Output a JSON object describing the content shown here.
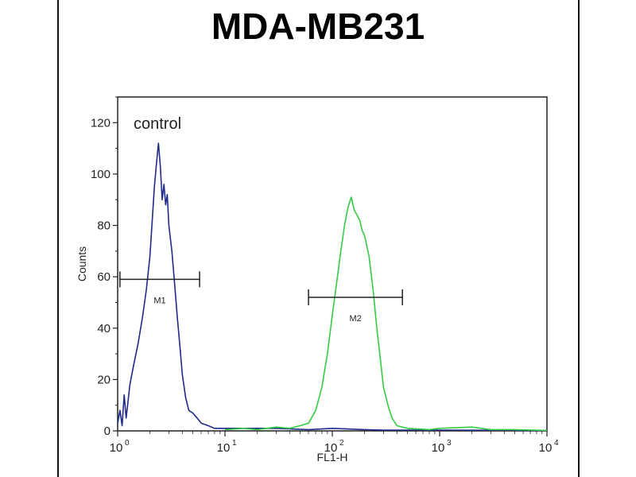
{
  "chart_data": {
    "type": "line",
    "title": "MDA-MB231",
    "xlabel": "FL1-H",
    "ylabel": "Counts",
    "xscale": "log",
    "xlim": [
      1,
      10000
    ],
    "ylim": [
      0,
      130
    ],
    "x_ticks": [
      {
        "value": 1,
        "base": "10",
        "exp": "0"
      },
      {
        "value": 10,
        "base": "10",
        "exp": "1"
      },
      {
        "value": 100,
        "base": "10",
        "exp": "2"
      },
      {
        "value": 1000,
        "base": "10",
        "exp": "3"
      },
      {
        "value": 10000,
        "base": "10",
        "exp": "4"
      }
    ],
    "y_ticks": [
      0,
      20,
      40,
      60,
      80,
      100,
      120
    ],
    "annotation": "control",
    "series": [
      {
        "color": "#1f2a8a",
        "points": [
          [
            1.0,
            3
          ],
          [
            1.05,
            8
          ],
          [
            1.1,
            2
          ],
          [
            1.15,
            14
          ],
          [
            1.2,
            5
          ],
          [
            1.3,
            18
          ],
          [
            1.4,
            25
          ],
          [
            1.55,
            34
          ],
          [
            1.7,
            44
          ],
          [
            1.85,
            55
          ],
          [
            2.0,
            68
          ],
          [
            2.1,
            82
          ],
          [
            2.2,
            95
          ],
          [
            2.3,
            104
          ],
          [
            2.4,
            112
          ],
          [
            2.5,
            103
          ],
          [
            2.6,
            90
          ],
          [
            2.7,
            96
          ],
          [
            2.8,
            88
          ],
          [
            2.9,
            92
          ],
          [
            3.0,
            80
          ],
          [
            3.2,
            70
          ],
          [
            3.4,
            57
          ],
          [
            3.6,
            44
          ],
          [
            3.8,
            33
          ],
          [
            4.0,
            22
          ],
          [
            4.3,
            13
          ],
          [
            4.6,
            8
          ],
          [
            5.0,
            7
          ],
          [
            5.5,
            5
          ],
          [
            6.0,
            3
          ],
          [
            7.0,
            2
          ],
          [
            8.0,
            1
          ],
          [
            10,
            1
          ],
          [
            15,
            1
          ],
          [
            30,
            1
          ],
          [
            60,
            0.5
          ],
          [
            100,
            1
          ],
          [
            200,
            0.5
          ],
          [
            300,
            0.3
          ],
          [
            1000,
            0.3
          ],
          [
            10000,
            0.2
          ]
        ]
      },
      {
        "color": "#33cc44",
        "points": [
          [
            10,
            0.5
          ],
          [
            15,
            1
          ],
          [
            20,
            0.5
          ],
          [
            30,
            1.5
          ],
          [
            40,
            1
          ],
          [
            50,
            2
          ],
          [
            60,
            3
          ],
          [
            70,
            8
          ],
          [
            80,
            17
          ],
          [
            90,
            30
          ],
          [
            100,
            45
          ],
          [
            110,
            58
          ],
          [
            120,
            70
          ],
          [
            130,
            80
          ],
          [
            140,
            87
          ],
          [
            150,
            91
          ],
          [
            160,
            86
          ],
          [
            170,
            84
          ],
          [
            180,
            82
          ],
          [
            190,
            78
          ],
          [
            200,
            76
          ],
          [
            220,
            68
          ],
          [
            240,
            55
          ],
          [
            260,
            40
          ],
          [
            280,
            28
          ],
          [
            300,
            17
          ],
          [
            330,
            10
          ],
          [
            360,
            5
          ],
          [
            400,
            2
          ],
          [
            500,
            1
          ],
          [
            800,
            0.5
          ],
          [
            1000,
            1
          ],
          [
            2000,
            1.5
          ],
          [
            3000,
            0.5
          ],
          [
            5000,
            0.5
          ],
          [
            10000,
            0.2
          ]
        ]
      }
    ],
    "markers": [
      {
        "label": "M1",
        "x_start": 1.05,
        "x_end": 5.8,
        "y": 59
      },
      {
        "label": "M2",
        "x_start": 60,
        "x_end": 450,
        "y": 52
      }
    ]
  }
}
